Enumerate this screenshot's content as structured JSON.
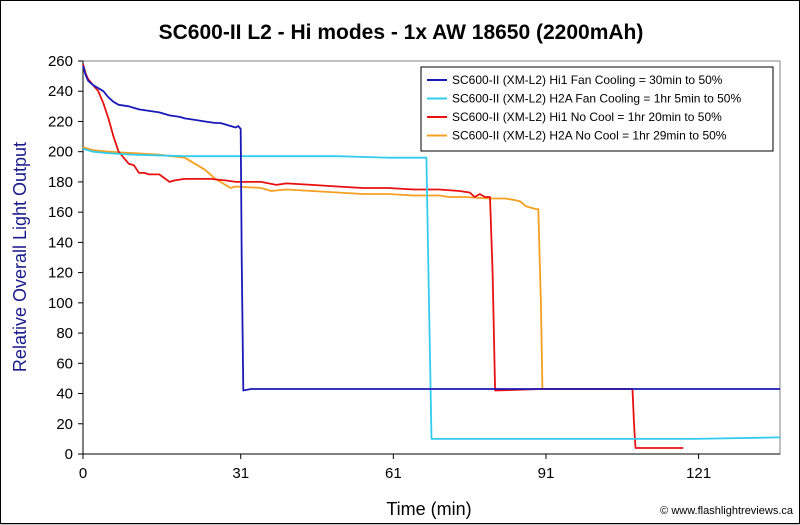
{
  "chart_data": {
    "type": "line",
    "title": "SC600-II L2 - Hi modes - 1x AW 18650 (2200mAh)",
    "xlabel": "Time (min)",
    "ylabel": "Relative Overall Light Output",
    "xlim": [
      0,
      137
    ],
    "ylim": [
      0,
      260
    ],
    "xticks": [
      0,
      31,
      61,
      91,
      121
    ],
    "yticks": [
      0,
      20,
      40,
      60,
      80,
      100,
      120,
      140,
      160,
      180,
      200,
      220,
      240,
      260
    ],
    "grid": false,
    "legend_position": "top-right",
    "credit": "© www.flashlightreviews.ca",
    "series": [
      {
        "name": "SC600-II (XM-L2) Hi1 Fan Cooling = 30min to 50%",
        "color": "#1a1ab8",
        "points": [
          [
            0,
            257
          ],
          [
            0.5,
            251
          ],
          [
            1,
            247
          ],
          [
            2,
            244
          ],
          [
            3,
            242
          ],
          [
            4,
            240
          ],
          [
            5,
            236
          ],
          [
            6,
            233
          ],
          [
            7,
            231
          ],
          [
            9,
            230
          ],
          [
            10,
            229
          ],
          [
            11,
            228
          ],
          [
            13,
            227
          ],
          [
            15,
            226
          ],
          [
            16,
            225
          ],
          [
            17,
            224
          ],
          [
            19,
            223
          ],
          [
            20,
            222
          ],
          [
            22,
            221
          ],
          [
            24,
            220
          ],
          [
            26,
            219
          ],
          [
            27,
            219
          ],
          [
            28,
            218
          ],
          [
            29,
            217
          ],
          [
            30,
            216
          ],
          [
            30.5,
            217
          ],
          [
            31,
            215
          ],
          [
            31.2,
            130
          ],
          [
            31.5,
            42
          ],
          [
            33,
            43
          ],
          [
            45,
            43
          ],
          [
            60,
            43
          ],
          [
            80,
            43
          ],
          [
            100,
            43
          ],
          [
            120,
            43
          ],
          [
            137,
            43
          ]
        ]
      },
      {
        "name": "SC600-II (XM-L2) H2A Fan Cooling = 1hr 5min to 50%",
        "color": "#33ccee",
        "points": [
          [
            0,
            202
          ],
          [
            2,
            200
          ],
          [
            5,
            199
          ],
          [
            10,
            198
          ],
          [
            20,
            197
          ],
          [
            30,
            197
          ],
          [
            40,
            197
          ],
          [
            50,
            197
          ],
          [
            60,
            196
          ],
          [
            66,
            196
          ],
          [
            67.5,
            196
          ],
          [
            68,
            100
          ],
          [
            68.5,
            10
          ],
          [
            80,
            10
          ],
          [
            100,
            10
          ],
          [
            120,
            10
          ],
          [
            137,
            11
          ]
        ]
      },
      {
        "name": "SC600-II (XM-L2) Hi1 No Cool = 1hr 20min to 50%",
        "color": "#e81010",
        "points": [
          [
            0,
            258
          ],
          [
            0.5,
            252
          ],
          [
            1,
            248
          ],
          [
            2,
            244
          ],
          [
            3,
            240
          ],
          [
            4,
            232
          ],
          [
            5,
            222
          ],
          [
            6,
            210
          ],
          [
            7,
            200
          ],
          [
            8,
            196
          ],
          [
            9,
            192
          ],
          [
            10,
            191
          ],
          [
            11,
            186
          ],
          [
            12,
            186
          ],
          [
            13,
            185
          ],
          [
            15,
            185
          ],
          [
            17,
            180
          ],
          [
            18,
            181
          ],
          [
            20,
            182
          ],
          [
            25,
            182
          ],
          [
            28,
            181
          ],
          [
            30,
            180
          ],
          [
            35,
            180
          ],
          [
            38,
            178
          ],
          [
            40,
            179
          ],
          [
            45,
            178
          ],
          [
            50,
            177
          ],
          [
            55,
            176
          ],
          [
            60,
            176
          ],
          [
            65,
            175
          ],
          [
            70,
            175
          ],
          [
            74,
            174
          ],
          [
            76,
            173
          ],
          [
            77,
            170
          ],
          [
            78,
            172
          ],
          [
            79,
            170
          ],
          [
            80,
            170
          ],
          [
            80.5,
            120
          ],
          [
            81,
            42
          ],
          [
            90,
            43
          ],
          [
            100,
            43
          ],
          [
            105,
            43
          ],
          [
            108,
            43
          ],
          [
            108.3,
            20
          ],
          [
            108.6,
            4
          ],
          [
            115,
            4
          ],
          [
            118,
            4
          ]
        ]
      },
      {
        "name": "SC600-II (XM-L2) H2A No Cool = 1hr 29min to 50%",
        "color": "#f5a020",
        "points": [
          [
            0,
            203
          ],
          [
            2,
            201
          ],
          [
            5,
            200
          ],
          [
            10,
            199
          ],
          [
            15,
            198
          ],
          [
            20,
            196
          ],
          [
            22,
            192
          ],
          [
            24,
            188
          ],
          [
            26,
            182
          ],
          [
            27,
            180
          ],
          [
            28,
            178
          ],
          [
            29,
            176
          ],
          [
            30,
            177
          ],
          [
            35,
            176
          ],
          [
            37,
            174
          ],
          [
            40,
            175
          ],
          [
            45,
            174
          ],
          [
            50,
            173
          ],
          [
            55,
            172
          ],
          [
            60,
            172
          ],
          [
            65,
            171
          ],
          [
            70,
            171
          ],
          [
            72,
            170
          ],
          [
            75,
            170
          ],
          [
            80,
            169
          ],
          [
            83,
            169
          ],
          [
            85,
            168
          ],
          [
            86,
            167
          ],
          [
            87,
            164
          ],
          [
            88,
            163
          ],
          [
            89,
            162
          ],
          [
            89.5,
            162
          ],
          [
            90,
            100
          ],
          [
            90.3,
            43
          ],
          [
            95,
            43
          ],
          [
            100,
            43
          ],
          [
            105,
            43
          ],
          [
            108,
            43
          ]
        ]
      }
    ]
  }
}
